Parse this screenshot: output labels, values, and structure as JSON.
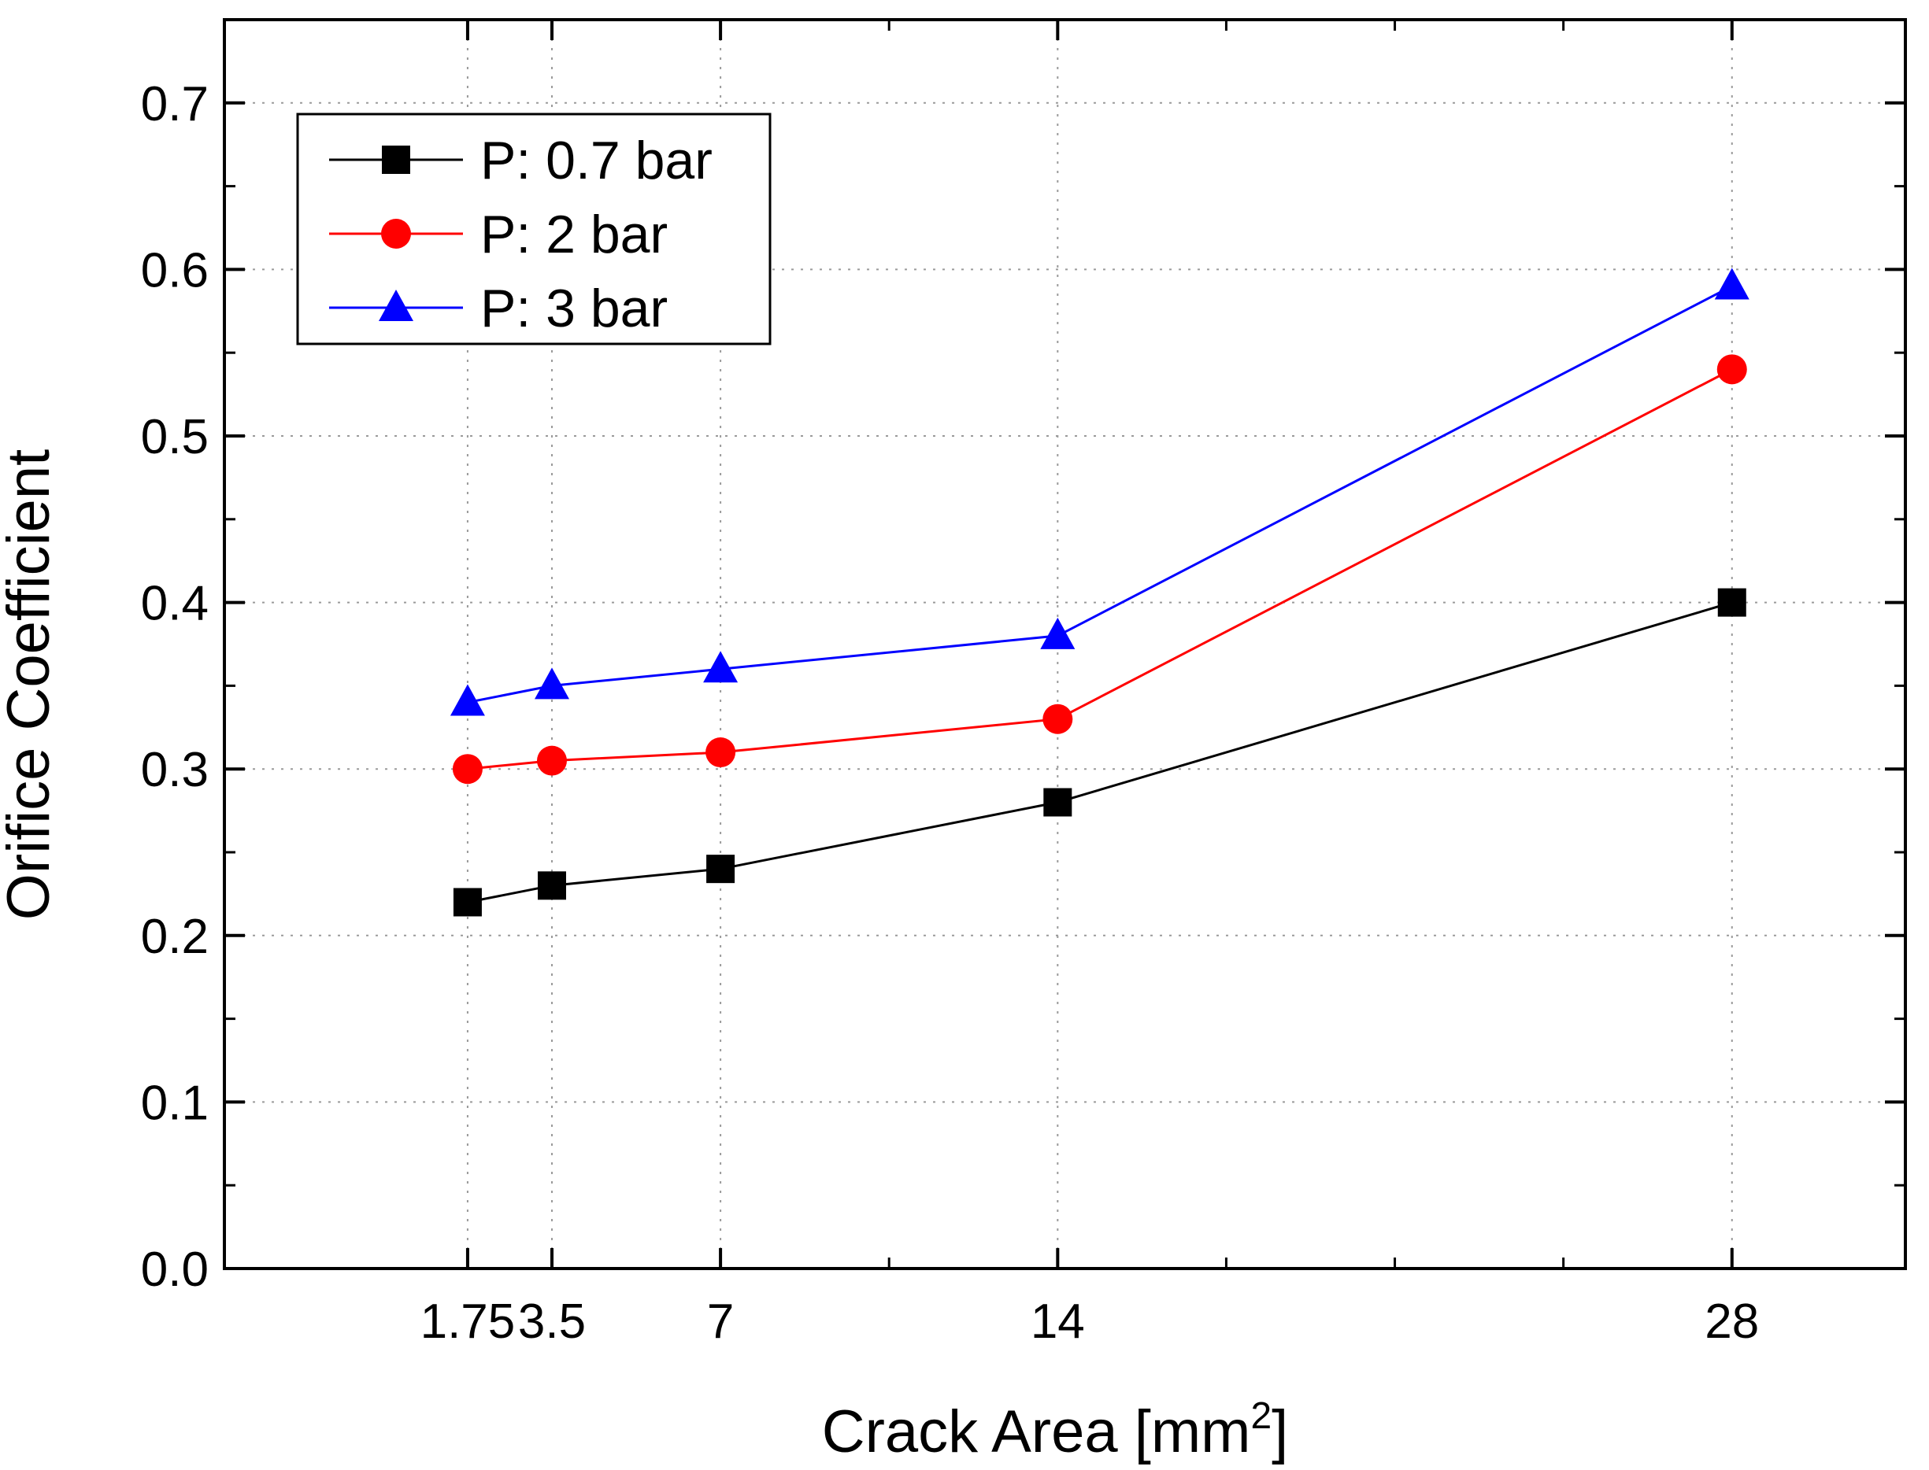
{
  "chart_data": {
    "type": "line",
    "title": "",
    "xlabel": "Crack Area [mm",
    "xlabel_superscript": "2",
    "xlabel_suffix": "]",
    "ylabel": "Orifice Coefficient",
    "xlim": [
      -3.3,
      31.6
    ],
    "ylim": [
      0.0,
      0.75
    ],
    "x": [
      1.75,
      3.5,
      7,
      14,
      28
    ],
    "x_tick_labels": [
      "1.75",
      "3.5",
      "7",
      "14",
      "28"
    ],
    "y_ticks": [
      0.0,
      0.1,
      0.2,
      0.3,
      0.4,
      0.5,
      0.6,
      0.7
    ],
    "y_tick_labels": [
      "0.0",
      "0.1",
      "0.2",
      "0.3",
      "0.4",
      "0.5",
      "0.6",
      "0.7"
    ],
    "grid": true,
    "legend_position": "top-left",
    "series": [
      {
        "name": "P: 0.7 bar",
        "color": "#000000",
        "marker": "square",
        "values": [
          0.22,
          0.23,
          0.24,
          0.28,
          0.4
        ]
      },
      {
        "name": "P: 2 bar",
        "color": "#ff0000",
        "marker": "circle",
        "values": [
          0.3,
          0.305,
          0.31,
          0.33,
          0.54
        ]
      },
      {
        "name": "P: 3 bar",
        "color": "#0000ff",
        "marker": "triangle",
        "values": [
          0.34,
          0.35,
          0.36,
          0.38,
          0.59
        ]
      }
    ]
  }
}
